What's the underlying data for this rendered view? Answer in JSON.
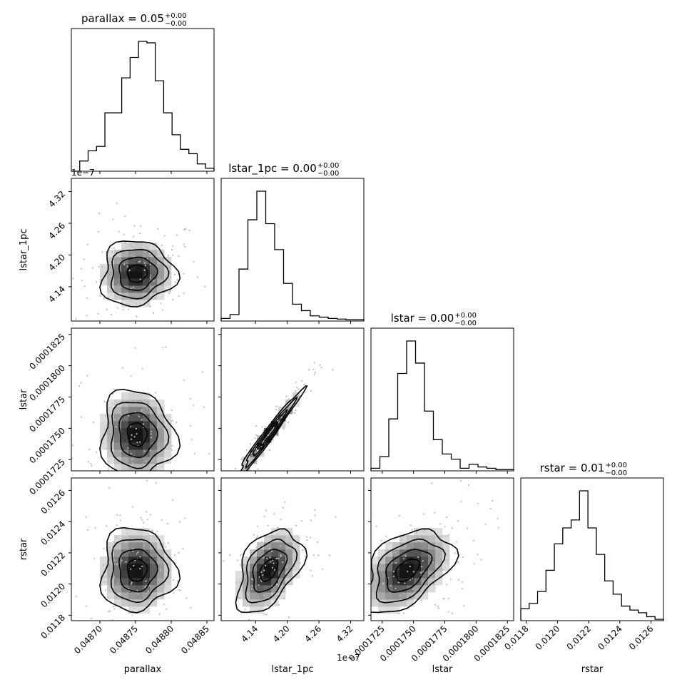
{
  "chart_data": {
    "type": "corner",
    "parameters": [
      "parallax",
      "lstar_1pc",
      "lstar",
      "rstar"
    ],
    "titles": [
      {
        "name": "parallax = 0.05",
        "plus": "+0.00",
        "minus": "−0.00"
      },
      {
        "name": "lstar_1pc = 0.00",
        "plus": "+0.00",
        "minus": "−0.00"
      },
      {
        "name": "lstar = 0.00",
        "plus": "+0.00",
        "minus": "−0.00"
      },
      {
        "name": "rstar = 0.01",
        "plus": "+0.00",
        "minus": "−0.00"
      }
    ],
    "axis_labels": [
      "parallax",
      "lstar_1pc",
      "lstar",
      "rstar"
    ],
    "offset_labels": {
      "lstar_1pc_y": "1e−7",
      "lstar_1pc_x": "1e−7"
    },
    "ranges": {
      "parallax": [
        0.04866,
        0.04886
      ],
      "lstar_1pc": [
        4.075,
        4.345
      ],
      "lstar": [
        0.0001716,
        0.000183
      ],
      "rstar": [
        0.011765,
        0.01268
      ]
    },
    "ticks": {
      "parallax": {
        "values": [
          0.0487,
          0.04875,
          0.0488,
          0.04885
        ],
        "labels": [
          "0.04870",
          "0.04875",
          "0.04880",
          "0.04885"
        ]
      },
      "lstar_1pc": {
        "values": [
          4.14,
          4.2,
          4.26,
          4.32
        ],
        "labels": [
          "4.14",
          "4.20",
          "4.26",
          "4.32"
        ]
      },
      "lstar": {
        "values": [
          0.0001725,
          0.000175,
          0.0001775,
          0.00018,
          0.0001825
        ],
        "labels": [
          "0.0001725",
          "0.0001750",
          "0.0001775",
          "0.0001800",
          "0.0001825"
        ]
      },
      "rstar": {
        "values": [
          0.0118,
          0.012,
          0.0122,
          0.0124,
          0.0126
        ],
        "labels": [
          "0.0118",
          "0.0120",
          "0.0122",
          "0.0124",
          "0.0126"
        ]
      }
    },
    "histograms": {
      "parallax": [
        0,
        0.07,
        0.14,
        0.17,
        0.4,
        0.4,
        0.64,
        0.78,
        0.89,
        0.88,
        0.62,
        0.4,
        0.25,
        0.15,
        0.12,
        0.05,
        0.02
      ],
      "lstar_1pc": [
        0.02,
        0.05,
        0.4,
        0.78,
        1.0,
        0.75,
        0.55,
        0.29,
        0.13,
        0.08,
        0.04,
        0.03,
        0.02,
        0.015,
        0.01,
        0.01
      ],
      "lstar": [
        0.02,
        0.11,
        0.4,
        0.75,
        1.0,
        0.83,
        0.46,
        0.24,
        0.13,
        0.09,
        0.02,
        0.05,
        0.03,
        0.02,
        0.01,
        0.01
      ],
      "rstar": [
        0.09,
        0.13,
        0.22,
        0.38,
        0.58,
        0.7,
        0.76,
        0.98,
        0.7,
        0.5,
        0.3,
        0.2,
        0.11,
        0.08,
        0.06,
        0.03,
        0.01
      ]
    },
    "pairs": [
      {
        "row": "lstar_1pc",
        "col": "parallax",
        "center": [
          0.048752,
          4.165
        ],
        "sigma": [
          2.5e-05,
          0.03
        ],
        "rho": 0.05
      },
      {
        "row": "lstar",
        "col": "parallax",
        "center": [
          0.048752,
          0.0001745
        ],
        "sigma": [
          2.5e-05,
          1.7e-06
        ],
        "rho": -0.05
      },
      {
        "row": "lstar",
        "col": "lstar_1pc",
        "center": [
          4.165,
          0.0001745
        ],
        "sigma": [
          0.03,
          1.7e-06
        ],
        "rho": 0.98
      },
      {
        "row": "rstar",
        "col": "parallax",
        "center": [
          0.048752,
          0.01209
        ],
        "sigma": [
          2.5e-05,
          0.00013
        ],
        "rho": 0.0
      },
      {
        "row": "rstar",
        "col": "lstar_1pc",
        "center": [
          4.165,
          0.01209
        ],
        "sigma": [
          0.03,
          0.00013
        ],
        "rho": 0.45
      },
      {
        "row": "rstar",
        "col": "lstar",
        "center": [
          0.0001745,
          0.01209
        ],
        "sigma": [
          1.7e-06,
          0.00013
        ],
        "rho": 0.45
      }
    ]
  }
}
